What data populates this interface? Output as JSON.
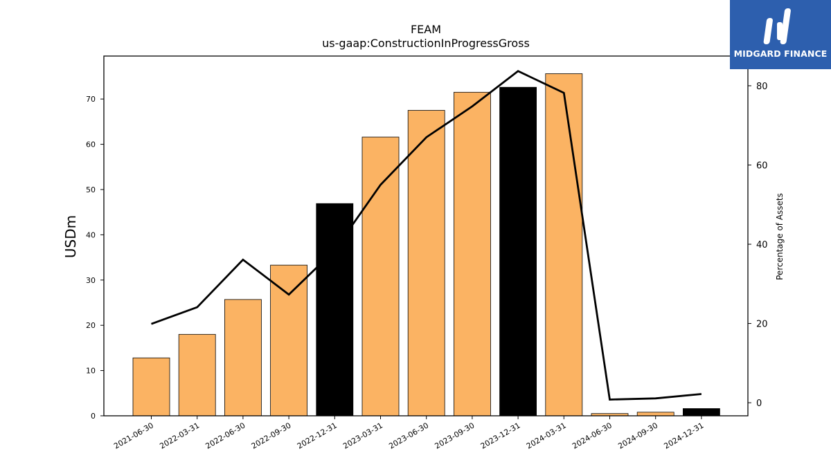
{
  "chart_data": {
    "type": "bar",
    "title": "FEAM",
    "subtitle": "us-gaap:ConstructionInProgressGross",
    "ylabel": "USDm",
    "y2label": "Percentage of Assets",
    "categories": [
      "2021-06-30",
      "2022-03-31",
      "2022-06-30",
      "2022-09-30",
      "2022-12-31",
      "2023-03-31",
      "2023-06-30",
      "2023-09-30",
      "2023-12-31",
      "2024-03-31",
      "2024-06-30",
      "2024-09-30",
      "2024-12-31"
    ],
    "values": [
      12.8,
      18.0,
      25.7,
      33.3,
      46.9,
      61.6,
      67.5,
      71.5,
      72.6,
      75.6,
      0.5,
      0.8,
      1.6
    ],
    "highlight": [
      false,
      false,
      false,
      false,
      true,
      false,
      false,
      false,
      true,
      false,
      false,
      false,
      true
    ],
    "line_values": [
      19.9,
      24.1,
      36.1,
      27.3,
      38.5,
      55.0,
      67.0,
      74.8,
      83.7,
      78.2,
      0.8,
      1.1,
      2.2
    ],
    "ylim": [
      0,
      79.5
    ],
    "y2lim": [
      -3.3,
      87.5
    ],
    "yticks": [
      0,
      10,
      20,
      30,
      40,
      50,
      60,
      70
    ],
    "y2ticks": [
      0,
      20,
      40,
      60,
      80
    ],
    "colors": {
      "bar": "#fbb363",
      "highlight": "#000000",
      "line": "#000000"
    }
  },
  "logo": {
    "text": "MIDGARD FINANCE",
    "icon": "midgard-logo-icon"
  }
}
